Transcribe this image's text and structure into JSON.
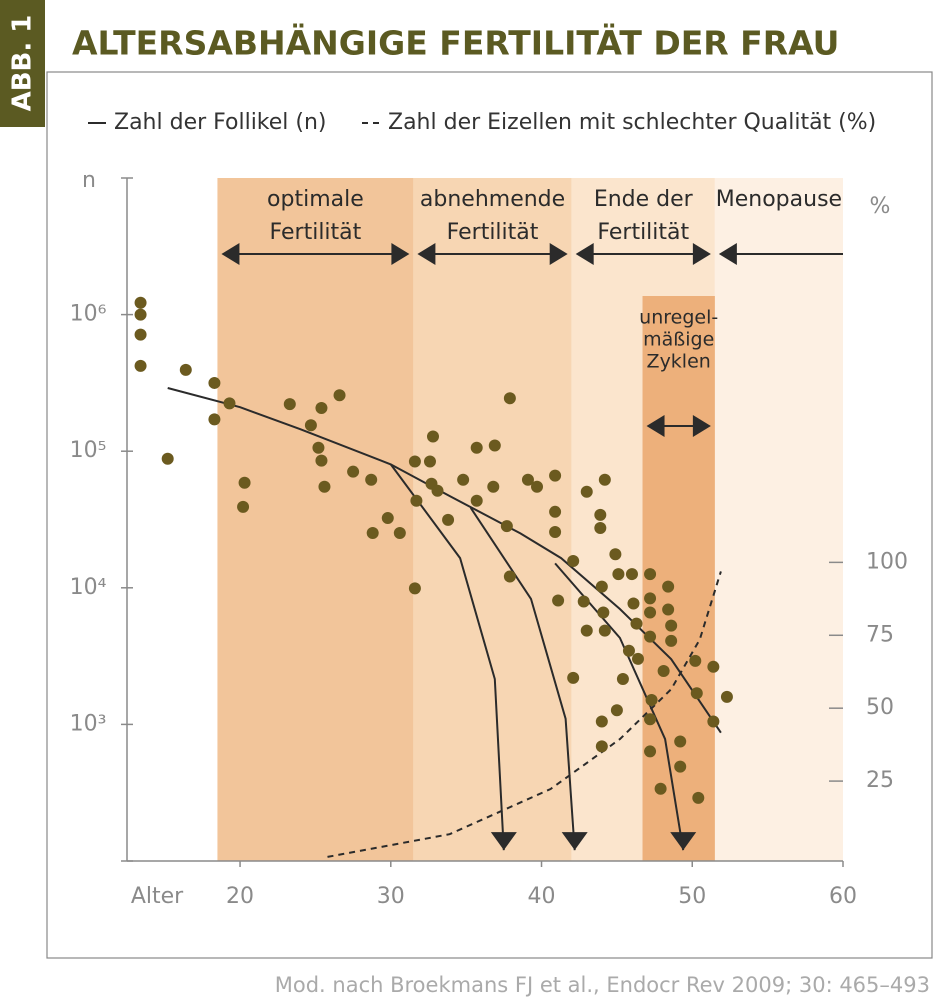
{
  "badge": "ABB. 1",
  "source": "Mod. nach Broekmans FJ et al., Endocr Rev 2009; 30: 465–493",
  "chart_data": {
    "type": "scatter",
    "title": "ALTERSABHÄNGIGE FERTILITÄT DER FRAU",
    "xlabel": "Alter",
    "ylabel": "n",
    "y2label": "%",
    "xlim": [
      12.5,
      60
    ],
    "xticks": [
      20,
      30,
      40,
      50,
      60
    ],
    "ylim": [
      100,
      10000000
    ],
    "log_y": true,
    "yticks": [
      {
        "value": 1000,
        "label": "10³"
      },
      {
        "value": 10000,
        "label": "10⁴"
      },
      {
        "value": 100000,
        "label": "10⁵"
      },
      {
        "value": 1000000,
        "label": "10⁶"
      }
    ],
    "y2lim": [
      -2.4,
      231.8
    ],
    "y2ticks": [
      25,
      50,
      75,
      100
    ],
    "regions": [
      {
        "label": [
          "optimale",
          "Fertilität"
        ],
        "x": [
          18.5,
          31.5
        ],
        "color": "#f2c59a",
        "arrow": "both"
      },
      {
        "label": [
          "abnehmende",
          "Fertilität"
        ],
        "x": [
          31.5,
          42
        ],
        "color": "#f7d6b3",
        "arrow": "both"
      },
      {
        "label": [
          "Ende der",
          "Fertilität"
        ],
        "x": [
          42,
          51.5
        ],
        "color": "#fbe5cd",
        "arrow": "both"
      },
      {
        "label": [
          "Menopause"
        ],
        "x": [
          51.5,
          60
        ],
        "color": "#fdf0e3",
        "arrow": "left"
      }
    ],
    "inner_region": {
      "label": [
        "unregel-",
        "mäßige",
        "Zyklen"
      ],
      "x": [
        46.7,
        51.5
      ],
      "color": "#edb07b"
    },
    "series": [
      {
        "name": "Zahl der Follikel (n)",
        "color": "#2b2b2b",
        "style": "solid",
        "x": [
          15.2,
          20.0,
          24.0,
          30.0,
          33.9,
          38.6,
          41.3,
          45.2,
          48.6,
          51.9
        ],
        "values": [
          290000,
          210000,
          145000,
          80000,
          47000,
          25000,
          16500,
          7000,
          3000,
          870
        ]
      },
      {
        "name": "Zahl der Eizellen mit schlechter Qualität (%)",
        "color": "#2b2b2b",
        "style": "dashed",
        "axis": "y2",
        "x": [
          25.8,
          33.9,
          40.6,
          45.2,
          48.6,
          50.5,
          51.9
        ],
        "values": [
          -1,
          6.8,
          22.3,
          39.4,
          56.5,
          73.6,
          96.9
        ]
      }
    ],
    "branches": [
      {
        "x": [
          30.0,
          34.6,
          36.9,
          37.5
        ],
        "values": [
          80000,
          16500,
          2150,
          120
        ]
      },
      {
        "x": [
          35.3,
          39.3,
          41.6,
          42.2
        ],
        "values": [
          38500,
          8300,
          1100,
          120
        ]
      },
      {
        "x": [
          40.9,
          45.2,
          48.2,
          49.4
        ],
        "values": [
          15100,
          4300,
          780,
          120
        ]
      }
    ],
    "points": {
      "color": "#6b5a1f",
      "x": [
        13.4,
        13.4,
        13.4,
        13.4,
        15.2,
        16.4,
        18.3,
        18.3,
        19.3,
        20.3,
        20.2,
        23.3,
        24.7,
        25.4,
        26.6,
        25.2,
        25.4,
        25.6,
        27.5,
        28.7,
        28.8,
        29.8,
        30.6,
        31.6,
        31.7,
        31.6,
        32.6,
        32.8,
        32.7,
        33.1,
        33.8,
        34.8,
        35.7,
        35.7,
        36.8,
        36.9,
        37.7,
        37.9,
        37.9,
        39.1,
        39.7,
        40.9,
        40.9,
        40.9,
        41.1,
        42.1,
        42.1,
        43.0,
        42.8,
        43.0,
        43.9,
        43.9,
        44.2,
        44.0,
        44.1,
        44.2,
        44.0,
        44.0,
        44.9,
        45.1,
        45.4,
        45.0,
        46.0,
        46.1,
        46.3,
        45.8,
        46.4,
        47.2,
        47.2,
        47.2,
        47.2,
        47.3,
        47.2,
        47.2,
        47.9,
        48.1,
        48.4,
        48.4,
        48.6,
        48.6,
        49.2,
        49.2,
        50.2,
        50.3,
        50.4,
        51.4,
        51.4,
        52.3
      ],
      "values": [
        1220000,
        1000000,
        713000,
        421000,
        88000,
        394000,
        316000,
        171000,
        224000,
        58700,
        39100,
        221000,
        155000,
        207000,
        257000,
        106000,
        85300,
        54900,
        70800,
        61800,
        25200,
        32400,
        25200,
        84000,
        43400,
        9900,
        84000,
        128000,
        57800,
        51300,
        31400,
        61800,
        106000,
        43400,
        54900,
        110000,
        28300,
        244000,
        12100,
        61800,
        54900,
        66200,
        36000,
        25600,
        8070,
        15700,
        2190,
        50500,
        7940,
        4860,
        34200,
        27400,
        61800,
        10200,
        6590,
        4860,
        1050,
        690,
        17600,
        12600,
        2150,
        1270,
        12600,
        7670,
        5470,
        3460,
        3020,
        12600,
        8360,
        6590,
        4390,
        1510,
        1090,
        634,
        338,
        2460,
        10200,
        6930,
        5290,
        4090,
        750,
        491,
        2920,
        1690,
        290,
        2640,
        1050,
        1590
      ]
    }
  }
}
